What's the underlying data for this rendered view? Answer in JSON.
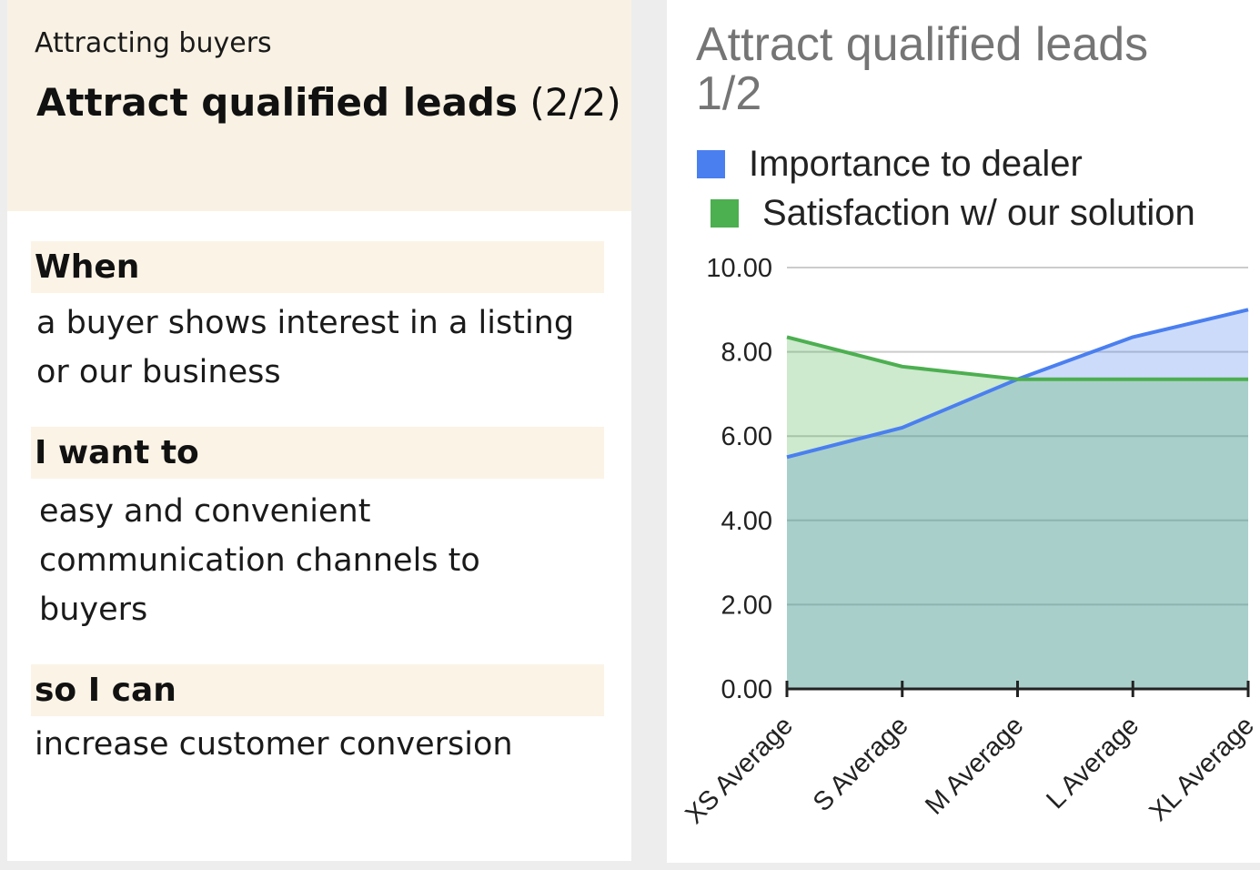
{
  "card": {
    "category": "Attracting buyers",
    "title": "Attract qualified leads",
    "title_count": "(2/2)",
    "sections": [
      {
        "heading": "When",
        "lines": [
          "a buyer shows interest in a listing",
          "or our business"
        ]
      },
      {
        "heading": "I want to",
        "lines": [
          "easy and convenient",
          "communication channels to",
          "buyers"
        ]
      },
      {
        "heading": "so I can",
        "lines": [
          "increase customer conversion"
        ]
      }
    ]
  },
  "colors": {
    "header_bg": "#f9f2e4",
    "importance": "#4a7ff0",
    "satisfaction": "#4caf50"
  },
  "chart_data": {
    "type": "area",
    "title_lines": [
      "Attract qualified leads",
      "1/2"
    ],
    "categories": [
      "XS Average",
      "S Average",
      "M Average",
      "L Average",
      "XL Average"
    ],
    "series": [
      {
        "name": "Importance to dealer",
        "color": "#4a7ff0",
        "values": [
          5.5,
          6.2,
          7.35,
          8.35,
          9.0
        ]
      },
      {
        "name": "Satisfaction w/ our solution",
        "color": "#4caf50",
        "values": [
          8.35,
          7.65,
          7.35,
          7.35,
          7.35
        ]
      }
    ],
    "y_ticks": [
      "0.00",
      "2.00",
      "4.00",
      "6.00",
      "8.00",
      "10.00"
    ],
    "ylim": [
      0,
      10
    ],
    "grid": true,
    "legend_position": "top"
  }
}
